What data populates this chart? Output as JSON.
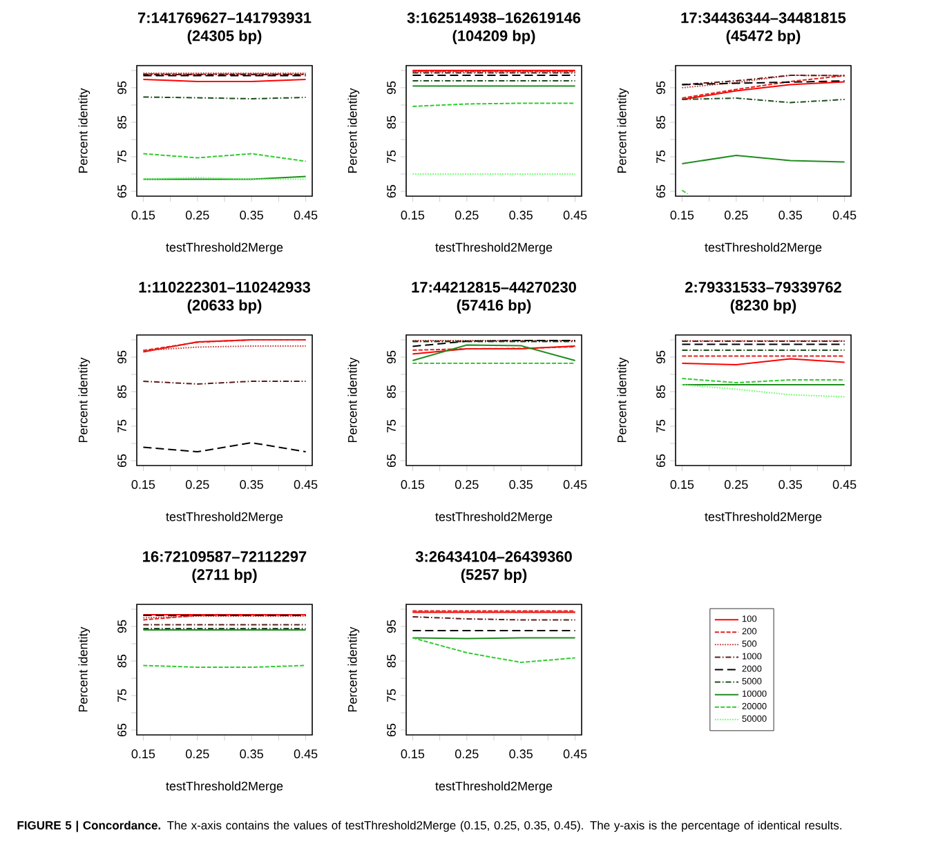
{
  "chart_data": [
    {
      "type": "line",
      "title": "7:141769627–141793931",
      "subtitle": "(24305 bp)",
      "xlabel": "testThreshold2Merge",
      "ylabel": "Percent identity",
      "x": [
        0.15,
        0.25,
        0.35,
        0.45
      ],
      "xlim": [
        0.138,
        0.462
      ],
      "ylim": [
        63.6,
        101.4
      ],
      "xticks": [
        0.15,
        {
          "value": 0.2,
          "label": null
        },
        0.25,
        {
          "value": 0.3,
          "label": null
        },
        0.35,
        {
          "value": 0.4,
          "label": null
        },
        0.45
      ],
      "yticks": [
        65,
        {
          "value": 70,
          "label": null
        },
        75,
        {
          "value": 80,
          "label": null
        },
        85,
        {
          "value": 90,
          "label": null
        },
        95,
        {
          "value": 100,
          "label": null
        }
      ],
      "series": [
        {
          "color": "#ff0000",
          "line_style": "solid",
          "values": [
            97.4,
            96.8,
            96.8,
            97.4
          ]
        },
        {
          "color": "#e0201a",
          "line_style": "dashed",
          "values": [
            99.0,
            98.9,
            99.0,
            98.9
          ]
        },
        {
          "color": "#c84040",
          "line_style": "dotted",
          "values": [
            99.2,
            99.2,
            99.2,
            99.2
          ]
        },
        {
          "color": "#5a1a1a",
          "line_style": "dashdot",
          "values": [
            98.8,
            98.8,
            98.8,
            98.8
          ]
        },
        {
          "color": "#000000",
          "line_style": "longdash",
          "values": [
            98.5,
            98.5,
            98.5,
            98.5
          ]
        },
        {
          "color": "#1a4d1a",
          "line_style": "dashdot",
          "values": [
            92.3,
            92.1,
            91.8,
            92.2
          ]
        },
        {
          "color": "#1e8c1e",
          "line_style": "solid",
          "values": [
            68.5,
            68.5,
            68.5,
            69.3
          ]
        },
        {
          "color": "#2ecc2e",
          "line_style": "dashed",
          "values": [
            75.9,
            74.7,
            75.9,
            73.7
          ]
        },
        {
          "color": "#66ff66",
          "line_style": "dotted",
          "values": [
            68.5,
            69.0,
            68.5,
            68.5
          ]
        }
      ]
    },
    {
      "type": "line",
      "title": "3:162514938–162619146",
      "subtitle": "(104209 bp)",
      "xlabel": "testThreshold2Merge",
      "ylabel": "Percent identity",
      "x": [
        0.15,
        0.25,
        0.35,
        0.45
      ],
      "xlim": [
        0.138,
        0.462
      ],
      "ylim": [
        63.6,
        101.4
      ],
      "xticks": [
        0.15,
        {
          "value": 0.2,
          "label": null
        },
        0.25,
        {
          "value": 0.3,
          "label": null
        },
        0.35,
        {
          "value": 0.4,
          "label": null
        },
        0.45
      ],
      "yticks": [
        65,
        {
          "value": 70,
          "label": null
        },
        75,
        {
          "value": 80,
          "label": null
        },
        85,
        {
          "value": 90,
          "label": null
        },
        95,
        {
          "value": 100,
          "label": null
        }
      ],
      "series": [
        {
          "color": "#ff0000",
          "line_style": "solid",
          "values": [
            100,
            100,
            100,
            100
          ]
        },
        {
          "color": "#e0201a",
          "line_style": "dashed",
          "values": [
            99.8,
            99.8,
            99.8,
            99.8
          ]
        },
        {
          "color": "#c84040",
          "line_style": "dotted",
          "values": [
            99.6,
            99.6,
            99.6,
            99.6
          ]
        },
        {
          "color": "#5a1a1a",
          "line_style": "dashdot",
          "values": [
            99.3,
            99.3,
            99.3,
            99.3
          ]
        },
        {
          "color": "#000000",
          "line_style": "longdash",
          "values": [
            98.6,
            98.6,
            98.6,
            98.6
          ]
        },
        {
          "color": "#1a4d1a",
          "line_style": "dashdot",
          "values": [
            97.0,
            97.0,
            97.0,
            97.0
          ]
        },
        {
          "color": "#1e8c1e",
          "line_style": "solid",
          "values": [
            95.5,
            95.5,
            95.5,
            95.5
          ]
        },
        {
          "color": "#2ecc2e",
          "line_style": "dashed",
          "values": [
            89.6,
            90.3,
            90.5,
            90.5
          ]
        },
        {
          "color": "#66ff66",
          "line_style": "dotted",
          "values": [
            70,
            70,
            70,
            70
          ]
        }
      ]
    },
    {
      "type": "line",
      "title": "17:34436344–34481815",
      "subtitle": "(45472 bp)",
      "xlabel": "testThreshold2Merge",
      "ylabel": "Percent identity",
      "x": [
        0.15,
        0.25,
        0.35,
        0.45
      ],
      "xlim": [
        0.138,
        0.462
      ],
      "ylim": [
        63.6,
        101.4
      ],
      "xticks": [
        0.15,
        {
          "value": 0.2,
          "label": null
        },
        0.25,
        {
          "value": 0.3,
          "label": null
        },
        0.35,
        {
          "value": 0.4,
          "label": null
        },
        0.45
      ],
      "yticks": [
        65,
        {
          "value": 70,
          "label": null
        },
        75,
        {
          "value": 80,
          "label": null
        },
        85,
        {
          "value": 90,
          "label": null
        },
        95,
        {
          "value": 100,
          "label": null
        }
      ],
      "series": [
        {
          "color": "#ff0000",
          "line_style": "solid",
          "values": [
            91.6,
            94.1,
            95.9,
            96.7
          ]
        },
        {
          "color": "#e0201a",
          "line_style": "dashed",
          "values": [
            92.0,
            94.5,
            96.8,
            98.5
          ]
        },
        {
          "color": "#c84040",
          "line_style": "dotted",
          "values": [
            95.0,
            96.5,
            98.6,
            98.5
          ]
        },
        {
          "color": "#5a1a1a",
          "line_style": "dashdot",
          "values": [
            95.9,
            97.0,
            98.6,
            98.5
          ]
        },
        {
          "color": "#000000",
          "line_style": "longdash",
          "values": [
            95.9,
            96.3,
            96.6,
            97.0
          ]
        },
        {
          "color": "#1a4d1a",
          "line_style": "dashdot",
          "values": [
            91.6,
            92.0,
            90.7,
            91.6
          ]
        },
        {
          "color": "#1e8c1e",
          "line_style": "solid",
          "values": [
            73.0,
            75.4,
            73.9,
            73.5
          ]
        },
        {
          "color": "#2ecc2e",
          "line_style": "dashed",
          "x": [
            0.15,
            0.16
          ],
          "values": [
            65.3,
            64.3
          ]
        }
      ]
    },
    {
      "type": "line",
      "title": "1:110222301–110242933",
      "subtitle": "(20633 bp)",
      "xlabel": "testThreshold2Merge",
      "ylabel": "Percent identity",
      "x": [
        0.15,
        0.25,
        0.35,
        0.45
      ],
      "xlim": [
        0.138,
        0.462
      ],
      "ylim": [
        63.6,
        101.4
      ],
      "xticks": [
        0.15,
        {
          "value": 0.2,
          "label": null
        },
        0.25,
        {
          "value": 0.3,
          "label": null
        },
        0.35,
        {
          "value": 0.4,
          "label": null
        },
        0.45
      ],
      "yticks": [
        65,
        {
          "value": 70,
          "label": null
        },
        75,
        {
          "value": 80,
          "label": null
        },
        85,
        {
          "value": 90,
          "label": null
        },
        95,
        {
          "value": 100,
          "label": null
        }
      ],
      "series": [
        {
          "color": "#ff0000",
          "line_style": "solid",
          "values": [
            96.5,
            99.4,
            100,
            100
          ]
        },
        {
          "color": "#e0201a",
          "line_style": "dashed",
          "values": [
            96.9,
            99.3,
            100,
            100
          ]
        },
        {
          "color": "#c84040",
          "line_style": "dotted",
          "values": [
            96.9,
            97.9,
            98.2,
            98.2
          ]
        },
        {
          "color": "#5a1a1a",
          "line_style": "dashdot",
          "values": [
            88.0,
            87.2,
            88.0,
            88.0
          ]
        },
        {
          "color": "#000000",
          "line_style": "longdash",
          "values": [
            68.9,
            67.6,
            70.2,
            67.6
          ]
        }
      ]
    },
    {
      "type": "line",
      "title": "17:44212815–44270230",
      "subtitle": "(57416 bp)",
      "xlabel": "testThreshold2Merge",
      "ylabel": "Percent identity",
      "x": [
        0.15,
        0.25,
        0.35,
        0.45
      ],
      "xlim": [
        0.138,
        0.462
      ],
      "ylim": [
        63.6,
        101.4
      ],
      "xticks": [
        0.15,
        {
          "value": 0.2,
          "label": null
        },
        0.25,
        {
          "value": 0.3,
          "label": null
        },
        0.35,
        {
          "value": 0.4,
          "label": null
        },
        0.45
      ],
      "yticks": [
        65,
        {
          "value": 70,
          "label": null
        },
        75,
        {
          "value": 80,
          "label": null
        },
        85,
        {
          "value": 90,
          "label": null
        },
        95,
        {
          "value": 100,
          "label": null
        }
      ],
      "series": [
        {
          "color": "#ff0000",
          "line_style": "solid",
          "values": [
            95.9,
            97.4,
            97.4,
            98.2
          ]
        },
        {
          "color": "#e0201a",
          "line_style": "dashed",
          "values": [
            97.0,
            97.4,
            97.5,
            98.0
          ]
        },
        {
          "color": "#c84040",
          "line_style": "dotted",
          "values": [
            99.8,
            99.8,
            99.8,
            99.8
          ]
        },
        {
          "color": "#5a1a1a",
          "line_style": "dashdot",
          "values": [
            99.6,
            99.6,
            99.6,
            99.6
          ]
        },
        {
          "color": "#000000",
          "line_style": "longdash",
          "values": [
            98.1,
            99.6,
            99.8,
            99.8
          ]
        },
        {
          "color": "#1a4d1a",
          "line_style": "dashdot",
          "values": [
            99.5,
            99.5,
            99.5,
            99.5
          ]
        },
        {
          "color": "#1e8c1e",
          "line_style": "solid",
          "values": [
            94.0,
            98.5,
            98.3,
            94.0
          ]
        },
        {
          "color": "#2ecc2e",
          "line_style": "dashed",
          "values": [
            93.2,
            93.2,
            93.2,
            93.2
          ]
        }
      ]
    },
    {
      "type": "line",
      "title": "2:79331533–79339762",
      "subtitle": "(8230 bp)",
      "xlabel": "testThreshold2Merge",
      "ylabel": "Percent identity",
      "x": [
        0.15,
        0.25,
        0.35,
        0.45
      ],
      "xlim": [
        0.138,
        0.462
      ],
      "ylim": [
        63.6,
        101.4
      ],
      "xticks": [
        0.15,
        {
          "value": 0.2,
          "label": null
        },
        0.25,
        {
          "value": 0.3,
          "label": null
        },
        0.35,
        {
          "value": 0.4,
          "label": null
        },
        0.45
      ],
      "yticks": [
        65,
        {
          "value": 70,
          "label": null
        },
        75,
        {
          "value": 80,
          "label": null
        },
        85,
        {
          "value": 90,
          "label": null
        },
        95,
        {
          "value": 100,
          "label": null
        }
      ],
      "series": [
        {
          "color": "#ff0000",
          "line_style": "solid",
          "values": [
            93.2,
            92.8,
            94.5,
            93.5
          ]
        },
        {
          "color": "#e0201a",
          "line_style": "dashed",
          "values": [
            95.3,
            95.3,
            95.3,
            95.3
          ]
        },
        {
          "color": "#c84040",
          "line_style": "dotted",
          "values": [
            99.7,
            99.7,
            99.7,
            99.7
          ]
        },
        {
          "color": "#5a1a1a",
          "line_style": "dashdot",
          "values": [
            99.6,
            99.6,
            99.6,
            99.6
          ]
        },
        {
          "color": "#000000",
          "line_style": "longdash",
          "values": [
            98.7,
            98.7,
            98.7,
            98.7
          ]
        },
        {
          "color": "#1a4d1a",
          "line_style": "dashdot",
          "values": [
            97.0,
            97.0,
            97.0,
            97.0
          ]
        },
        {
          "color": "#1e8c1e",
          "line_style": "solid",
          "values": [
            87.0,
            87.0,
            87.0,
            87.0
          ]
        },
        {
          "color": "#2ecc2e",
          "line_style": "dashed",
          "values": [
            88.8,
            87.6,
            88.4,
            88.4
          ]
        },
        {
          "color": "#66ff66",
          "line_style": "dotted",
          "values": [
            87.0,
            85.7,
            84.1,
            83.5
          ]
        }
      ]
    },
    {
      "type": "line",
      "title": "16:72109587–72112297",
      "subtitle": "(2711 bp)",
      "xlabel": "testThreshold2Merge",
      "ylabel": "Percent identity",
      "x": [
        0.15,
        0.25,
        0.35,
        0.45
      ],
      "xlim": [
        0.138,
        0.462
      ],
      "ylim": [
        63.6,
        101.4
      ],
      "xticks": [
        0.15,
        {
          "value": 0.2,
          "label": null
        },
        0.25,
        {
          "value": 0.3,
          "label": null
        },
        0.35,
        {
          "value": 0.4,
          "label": null
        },
        0.45
      ],
      "yticks": [
        65,
        {
          "value": 70,
          "label": null
        },
        75,
        {
          "value": 80,
          "label": null
        },
        85,
        {
          "value": 90,
          "label": null
        },
        95,
        {
          "value": 100,
          "label": null
        }
      ],
      "series": [
        {
          "color": "#ff0000",
          "line_style": "solid",
          "values": [
            98.4,
            98.4,
            98.4,
            98.4
          ]
        },
        {
          "color": "#e0201a",
          "line_style": "dashed",
          "values": [
            96.9,
            98.2,
            98.2,
            98.4
          ]
        },
        {
          "color": "#c84040",
          "line_style": "dotted",
          "values": [
            97.5,
            98.0,
            98.0,
            98.0
          ]
        },
        {
          "color": "#5a1a1a",
          "line_style": "dashdot",
          "values": [
            95.5,
            95.5,
            95.5,
            95.5
          ]
        },
        {
          "color": "#000000",
          "line_style": "longdash",
          "values": [
            98.2,
            98.2,
            98.2,
            98.2
          ]
        },
        {
          "color": "#1a4d1a",
          "line_style": "dashdot",
          "values": [
            94.4,
            94.4,
            94.4,
            94.4
          ]
        },
        {
          "color": "#1e8c1e",
          "line_style": "solid",
          "values": [
            94.0,
            94.0,
            94.0,
            94.0
          ]
        },
        {
          "color": "#2ecc2e",
          "line_style": "dashed",
          "values": [
            83.7,
            83.2,
            83.2,
            83.7
          ]
        }
      ]
    },
    {
      "type": "line",
      "title": "3:26434104–26439360",
      "subtitle": "(5257 bp)",
      "xlabel": "testThreshold2Merge",
      "ylabel": "Percent identity",
      "x": [
        0.15,
        0.25,
        0.35,
        0.45
      ],
      "xlim": [
        0.138,
        0.462
      ],
      "ylim": [
        63.6,
        101.4
      ],
      "xticks": [
        0.15,
        {
          "value": 0.2,
          "label": null
        },
        0.25,
        {
          "value": 0.3,
          "label": null
        },
        0.35,
        {
          "value": 0.4,
          "label": null
        },
        0.45
      ],
      "yticks": [
        65,
        {
          "value": 70,
          "label": null
        },
        75,
        {
          "value": 80,
          "label": null
        },
        85,
        {
          "value": 90,
          "label": null
        },
        95,
        {
          "value": 100,
          "label": null
        }
      ],
      "legend": "right",
      "annotations": [
        "**FIGURE 5 | Concordance.** The x-axis contains the values of testThreshold2Merge (0.15, 0.25, 0.35, 0.45). The y-axis is the percentage of identical results."
      ],
      "series": [
        {
          "name": "100",
          "color": "#ff0000",
          "line_style": "solid",
          "values": [
            99.1,
            99.1,
            99.1,
            99.1
          ]
        },
        {
          "name": "200",
          "color": "#e0201a",
          "line_style": "dashed",
          "values": [
            99.5,
            99.5,
            99.5,
            99.5
          ]
        },
        {
          "name": "500",
          "color": "#c84040",
          "line_style": "dotted",
          "values": [
            99.3,
            99.3,
            99.3,
            99.3
          ]
        },
        {
          "name": "1000",
          "color": "#5a1a1a",
          "line_style": "dashdot",
          "values": [
            97.8,
            97.2,
            96.9,
            96.9
          ]
        },
        {
          "name": "2000",
          "color": "#000000",
          "line_style": "longdash",
          "values": [
            93.8,
            93.8,
            93.8,
            93.8
          ]
        },
        {
          "name": "5000",
          "color": "#1a4d1a",
          "line_style": "dashdot",
          "values": [
            null,
            null,
            null,
            null
          ]
        },
        {
          "name": "10000",
          "color": "#1e8c1e",
          "line_style": "solid",
          "values": [
            91.7,
            91.5,
            91.7,
            91.7
          ]
        },
        {
          "name": "20000",
          "color": "#2ecc2e",
          "line_style": "dashed",
          "values": [
            91.7,
            87.4,
            84.6,
            85.9
          ]
        },
        {
          "name": "50000",
          "color": "#66ff66",
          "line_style": "dotted",
          "values": [
            null,
            null,
            null,
            null
          ]
        }
      ]
    }
  ]
}
